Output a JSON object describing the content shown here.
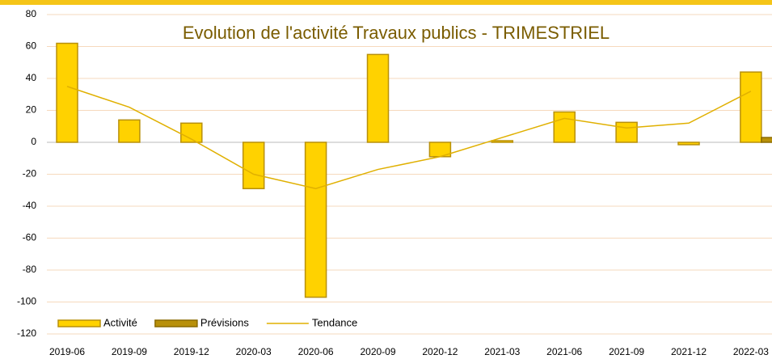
{
  "chart_data": {
    "type": "bar",
    "title": "Evolution de l'activité Travaux publics - TRIMESTRIEL",
    "categories": [
      "2019-06",
      "2019-09",
      "2019-12",
      "2020-03",
      "2020-06",
      "2020-09",
      "2020-12",
      "2021-03",
      "2021-06",
      "2021-09",
      "2021-12",
      "2022-03"
    ],
    "series": [
      {
        "name": "Activité",
        "type": "bar",
        "color": "#ffd200",
        "stroke": "#b8900a",
        "values": [
          62,
          14,
          12,
          -29,
          -97,
          55,
          -9,
          1,
          19,
          12.5,
          -1.5,
          44
        ]
      },
      {
        "name": "Prévisions",
        "type": "bar",
        "color": "#b8900a",
        "stroke": "#8a6a00",
        "values": [
          null,
          null,
          null,
          null,
          null,
          null,
          null,
          null,
          null,
          null,
          null,
          3
        ]
      },
      {
        "name": "Tendance",
        "type": "line",
        "color": "#e0b000",
        "values": [
          35,
          22,
          2,
          -20,
          -29,
          -17,
          -9,
          3,
          15,
          9,
          12,
          32
        ]
      }
    ],
    "ylim": [
      -120,
      80
    ],
    "yticks": [
      80,
      60,
      40,
      20,
      0,
      -20,
      -40,
      -60,
      -80,
      -100,
      -120
    ],
    "grid": true
  }
}
